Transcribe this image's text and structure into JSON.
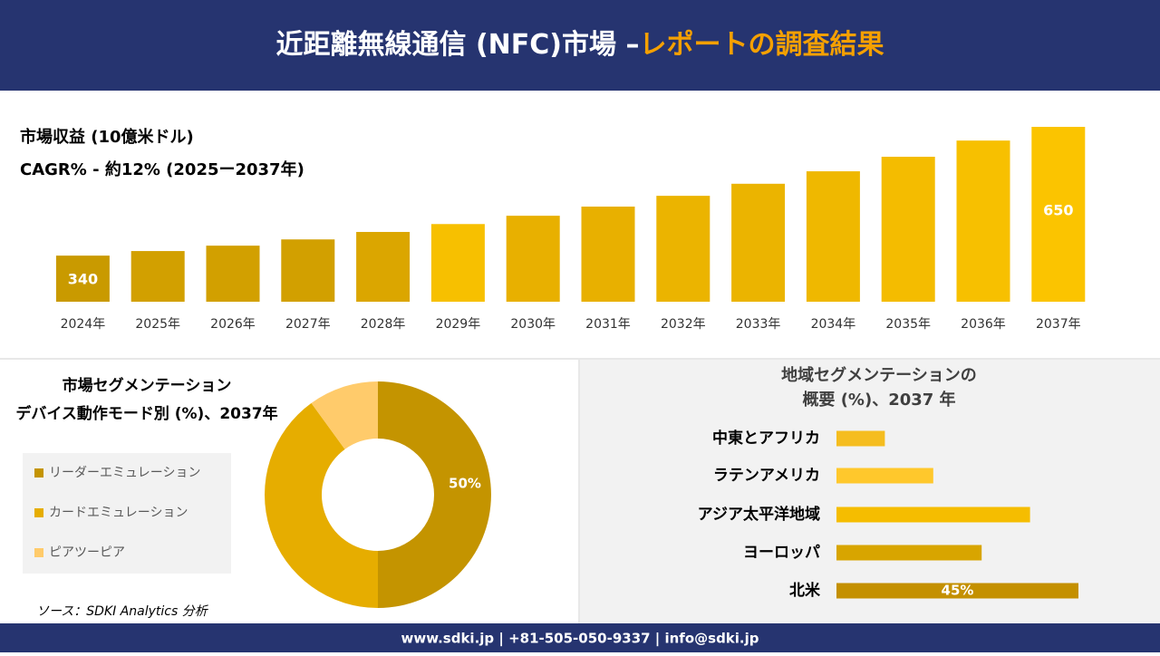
{
  "header": {
    "title": "近距離無線通信 (NFC)市場 –",
    "highlight": "レポートの調査結果"
  },
  "chart_data": [
    {
      "type": "bar",
      "title": "市場収益 (10億米ドル)",
      "subtitle": "CAGR% - 約12% (2025ー2037年)",
      "categories": [
        "2024年",
        "2025年",
        "2026年",
        "2027年",
        "2028年",
        "2029年",
        "2030年",
        "2031年",
        "2032年",
        "2033年",
        "2034年",
        "2035年",
        "2036年",
        "2037年"
      ],
      "values": [
        340,
        351,
        364,
        379,
        397,
        416,
        436,
        458,
        484,
        513,
        543,
        578,
        617,
        650
      ],
      "value_labels": [
        "340",
        null,
        null,
        null,
        null,
        null,
        null,
        null,
        null,
        null,
        null,
        null,
        null,
        "650"
      ],
      "colors": [
        "#c99a00",
        "#d2a000",
        "#d2a000",
        "#d2a000",
        "#dba600",
        "#f7c000",
        "#e8b000",
        "#e8b000",
        "#ebb400",
        "#ebb400",
        "#efb800",
        "#f4bc00",
        "#f7c000",
        "#fbc400"
      ],
      "ylim": [
        229,
        650
      ]
    },
    {
      "type": "donut",
      "title": "市場セグメンテーション",
      "subtitle": "デバイス動作モード別 (%)、2037年",
      "categories": [
        "リーダーエミュレーション",
        "カードエミュレーション",
        "ピアツーピア"
      ],
      "values": [
        50,
        40,
        10
      ],
      "value_labels": [
        "50%",
        null,
        null
      ],
      "colors": [
        "#c49400",
        "#e6ad00",
        "#ffcb6b"
      ]
    },
    {
      "type": "hbar",
      "title": "地域セグメンテーションの",
      "subtitle": "概要 (%)、2037 年",
      "categories": [
        "中東とアフリカ",
        "ラテンアメリカ",
        "アジア太平洋地域",
        "ヨーロッパ",
        "北米"
      ],
      "values": [
        9,
        18,
        36,
        27,
        45
      ],
      "value_labels": [
        null,
        null,
        null,
        null,
        "45%"
      ],
      "colors": [
        "#f5bd1f",
        "#ffc82c",
        "#f5bd00",
        "#d8a500",
        "#c49000"
      ],
      "xlim": [
        0,
        45
      ]
    }
  ],
  "source": "ソース：SDKI Analytics 分析",
  "footer": "www.sdki.jp | +81-505-050-9337 | info@sdki.jp"
}
